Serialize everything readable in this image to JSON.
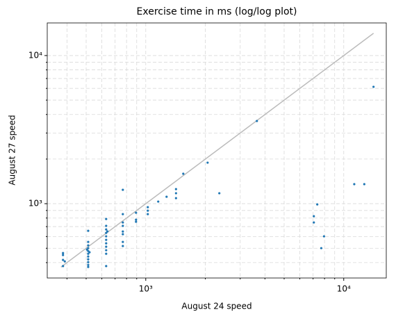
{
  "chart_data": {
    "type": "scatter",
    "title": "Exercise time in ms (log/log plot)",
    "x_label": "August 24 speed",
    "y_label": "August 27 speed",
    "log_x": true,
    "log_y": true,
    "grid": true,
    "color": "#1f77b4",
    "xlim": [
      318,
      16400
    ],
    "ylim": [
      315,
      16600
    ],
    "xticks": [
      {
        "value": 1000,
        "label": "10³"
      },
      {
        "value": 10000,
        "label": "10⁴"
      }
    ],
    "yticks": [
      {
        "value": 1000,
        "label": "10³"
      },
      {
        "value": 10000,
        "label": "10⁴"
      }
    ],
    "xminorticks": [
      400,
      500,
      600,
      700,
      800,
      900,
      2000,
      3000,
      4000,
      5000,
      6000,
      7000,
      8000,
      9000
    ],
    "yminorticks": [
      400,
      500,
      600,
      700,
      800,
      900,
      2000,
      3000,
      4000,
      5000,
      6000,
      7000,
      8000,
      9000
    ],
    "reference_line": {
      "x": [
        373,
        14140
      ],
      "y": [
        373,
        14140
      ],
      "color": "#bbbbbb"
    },
    "x": [
      382,
      382,
      382,
      382,
      390,
      512,
      512,
      512,
      512,
      512,
      512,
      512,
      512,
      512,
      512,
      512,
      505,
      520,
      631,
      631,
      631,
      631,
      631,
      631,
      631,
      631,
      631,
      631,
      631,
      640,
      766,
      766,
      766,
      766,
      766,
      766,
      766,
      766,
      893,
      893,
      893,
      1024,
      1024,
      1024,
      1156,
      1274,
      1422,
      1422,
      1422,
      1547,
      2053,
      2353,
      3641,
      7062,
      7062,
      7350,
      7700,
      7950,
      11300,
      12700,
      14140
    ],
    "y": [
      464,
      450,
      417,
      379,
      408,
      656,
      552,
      523,
      501,
      479,
      459,
      440,
      421,
      403,
      386,
      374,
      490,
      470,
      788,
      708,
      670,
      635,
      602,
      570,
      540,
      512,
      485,
      459,
      379,
      650,
      1241,
      850,
      747,
      708,
      649,
      622,
      552,
      518,
      869,
      780,
      755,
      947,
      897,
      850,
      1033,
      1114,
      1254,
      1176,
      1090,
      1592,
      1892,
      1176,
      3616,
      823,
      747,
      989,
      501,
      602,
      1354,
      1354,
      6150
    ]
  }
}
